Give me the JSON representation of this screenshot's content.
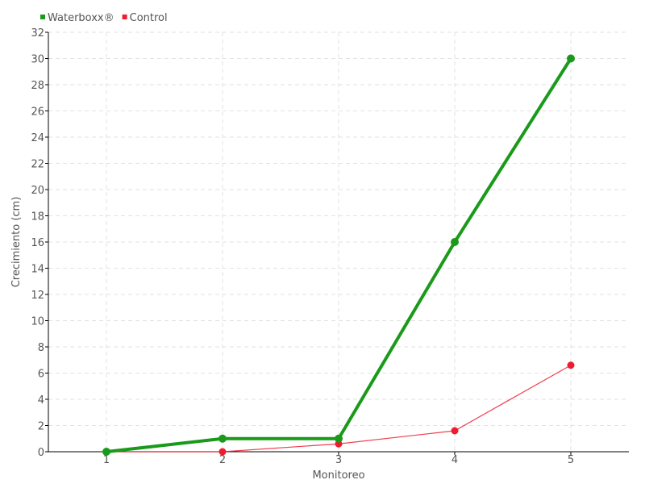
{
  "chart_data": {
    "type": "line",
    "title": "",
    "xlabel": "Monitoreo",
    "ylabel": "Crecimiento (cm)",
    "categories": [
      "1",
      "2",
      "3",
      "4",
      "5"
    ],
    "x": [
      1,
      2,
      3,
      4,
      5
    ],
    "xlim": [
      0.5,
      5.5
    ],
    "ylim": [
      0,
      32
    ],
    "yticks": [
      0,
      2,
      4,
      6,
      8,
      10,
      12,
      14,
      16,
      18,
      20,
      22,
      24,
      26,
      28,
      30,
      32
    ],
    "grid": true,
    "legend": "top-left",
    "series": [
      {
        "name": "Waterboxx®",
        "color": "#1a9a1a",
        "values": [
          0,
          1,
          1,
          16,
          30
        ]
      },
      {
        "name": "Control",
        "color": "#ee1c2e",
        "values": [
          0,
          0,
          0.6,
          1.6,
          6.6
        ]
      }
    ]
  }
}
